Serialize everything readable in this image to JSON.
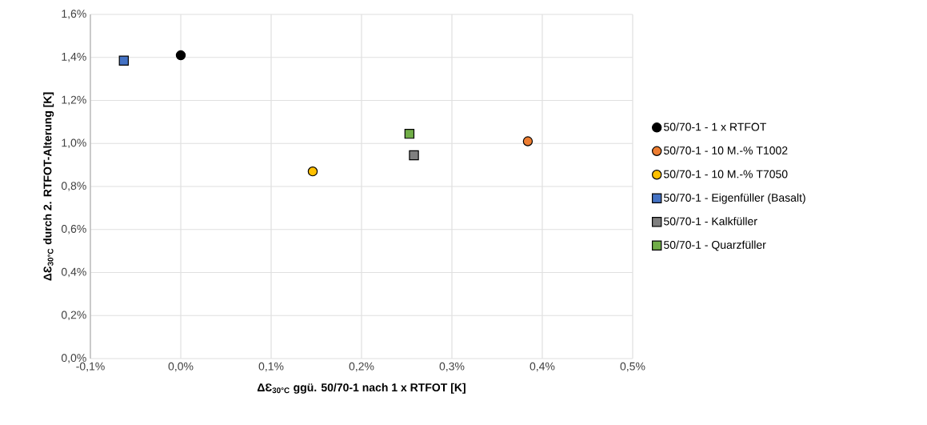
{
  "chart_data": {
    "type": "scatter",
    "xlabel": "ΔƐ$_{30°C}$ ggü. 50/70-1 nach 1 x RTFOT [K]",
    "ylabel": "ΔƐ$_{30°C}$ durch 2. RTFOT-Alterung [K]",
    "xlim": [
      -0.1,
      0.5
    ],
    "ylim": [
      0,
      1.6
    ],
    "xticks": [
      {
        "value": -0.1,
        "label": "-0,1%"
      },
      {
        "value": 0,
        "label": "0,0%"
      },
      {
        "value": 0.1,
        "label": "0,1%"
      },
      {
        "value": 0.2,
        "label": "0,2%"
      },
      {
        "value": 0.3,
        "label": "0,3%"
      },
      {
        "value": 0.4,
        "label": "0,4%"
      },
      {
        "value": 0.5,
        "label": "0,5%"
      }
    ],
    "yticks": [
      {
        "value": 0,
        "label": "0,0%"
      },
      {
        "value": 0.2,
        "label": "0,2%"
      },
      {
        "value": 0.4,
        "label": "0,4%"
      },
      {
        "value": 0.6,
        "label": "0,6%"
      },
      {
        "value": 0.8,
        "label": "0,8%"
      },
      {
        "value": 1.0,
        "label": "1,0%"
      },
      {
        "value": 1.2,
        "label": "1,2%"
      },
      {
        "value": 1.4,
        "label": "1,4%"
      },
      {
        "value": 1.6,
        "label": "1,6%"
      }
    ],
    "grid": true,
    "legend": "right",
    "series": [
      {
        "name": "50/70-1 - 1 x RTFOT",
        "color": "#000000",
        "marker": "circle",
        "x": [
          0.0
        ],
        "values": [
          1.41
        ]
      },
      {
        "name": "50/70-1 - 10 M.-% T1002",
        "color": "#ed7d31",
        "marker": "circle",
        "x": [
          0.384
        ],
        "values": [
          1.01
        ]
      },
      {
        "name": "50/70-1 - 10 M.-% T7050",
        "color": "#ffc000",
        "marker": "circle",
        "x": [
          0.146
        ],
        "values": [
          0.87
        ]
      },
      {
        "name": "50/70-1 - Eigenfüller (Basalt)",
        "color": "#4472c4",
        "marker": "square",
        "x": [
          -0.063
        ],
        "values": [
          1.385
        ]
      },
      {
        "name": "50/70-1 - Kalkfüller",
        "color": "#7f7f7f",
        "marker": "square",
        "x": [
          0.258
        ],
        "values": [
          0.945
        ]
      },
      {
        "name": "50/70-1 - Quarzfüller",
        "color": "#70ad47",
        "marker": "square",
        "x": [
          0.253
        ],
        "values": [
          1.045
        ]
      }
    ]
  }
}
